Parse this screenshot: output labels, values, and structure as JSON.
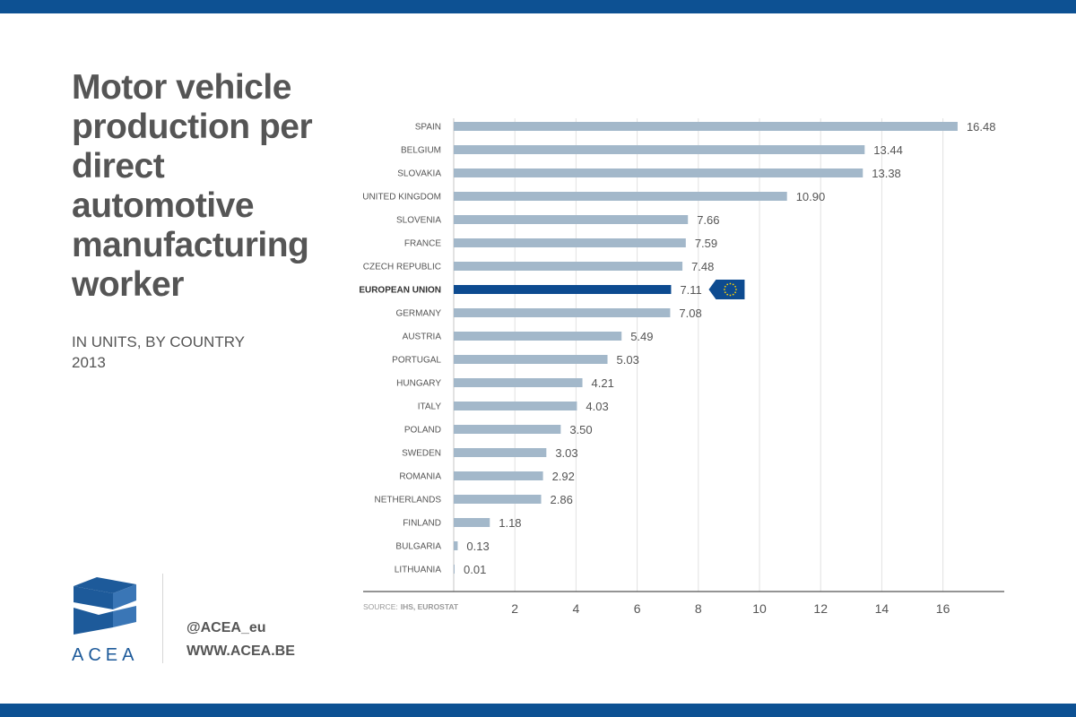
{
  "title": "Motor vehicle production per direct automotive manufacturing worker",
  "subtitle": [
    "IN UNITS, BY COUNTRY",
    "2013"
  ],
  "source": {
    "label": "SOURCE:",
    "text": "IHS, EUROSTAT"
  },
  "footer": {
    "logo_text": "ACEA",
    "handle": "@ACEA_eu",
    "website": "WWW.ACEA.BE"
  },
  "colors": {
    "brand": "#0d5193",
    "bar": "#a3b8ca",
    "highlight": "#0d4b90",
    "text": "#555555"
  },
  "chart_data": {
    "type": "bar",
    "orientation": "horizontal",
    "categories": [
      "SPAIN",
      "BELGIUM",
      "SLOVAKIA",
      "UNITED KINGDOM",
      "SLOVENIA",
      "FRANCE",
      "CZECH REPUBLIC",
      "EUROPEAN UNION",
      "GERMANY",
      "AUSTRIA",
      "PORTUGAL",
      "HUNGARY",
      "ITALY",
      "POLAND",
      "SWEDEN",
      "ROMANIA",
      "NETHERLANDS",
      "FINLAND",
      "BULGARIA",
      "LITHUANIA"
    ],
    "values": [
      16.48,
      13.44,
      13.38,
      10.9,
      7.66,
      7.59,
      7.48,
      7.11,
      7.08,
      5.49,
      5.03,
      4.21,
      4.03,
      3.5,
      3.03,
      2.92,
      2.86,
      1.18,
      0.13,
      0.01
    ],
    "value_labels": [
      "16.48",
      "13.44",
      "13.38",
      "10.90",
      "7.66",
      "7.59",
      "7.48",
      "7.11",
      "7.08",
      "5.49",
      "5.03",
      "4.21",
      "4.03",
      "3.50",
      "3.03",
      "2.92",
      "2.86",
      "1.18",
      "0.13",
      "0.01"
    ],
    "highlight": "EUROPEAN UNION",
    "highlight_icon": "eu-flag-icon",
    "xlim": [
      0,
      18
    ],
    "xticks": [
      2,
      4,
      6,
      8,
      10,
      12,
      14,
      16
    ],
    "grid": true,
    "xlabel": "",
    "ylabel": ""
  }
}
